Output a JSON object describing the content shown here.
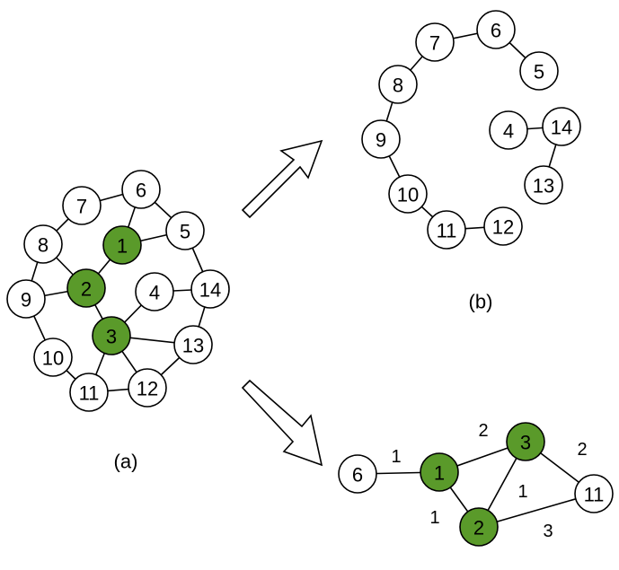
{
  "colors": {
    "highlight": "#5a9a2a",
    "plain": "#ffffff",
    "stroke": "#000000"
  },
  "panels": {
    "a": {
      "caption": "(a)",
      "nodes": [
        {
          "id": "1",
          "label": "1",
          "highlight": true
        },
        {
          "id": "2",
          "label": "2",
          "highlight": true
        },
        {
          "id": "3",
          "label": "3",
          "highlight": true
        },
        {
          "id": "4",
          "label": "4",
          "highlight": false
        },
        {
          "id": "5",
          "label": "5",
          "highlight": false
        },
        {
          "id": "6",
          "label": "6",
          "highlight": false
        },
        {
          "id": "7",
          "label": "7",
          "highlight": false
        },
        {
          "id": "8",
          "label": "8",
          "highlight": false
        },
        {
          "id": "9",
          "label": "9",
          "highlight": false
        },
        {
          "id": "10",
          "label": "10",
          "highlight": false
        },
        {
          "id": "11",
          "label": "11",
          "highlight": false
        },
        {
          "id": "12",
          "label": "12",
          "highlight": false
        },
        {
          "id": "13",
          "label": "13",
          "highlight": false
        },
        {
          "id": "14",
          "label": "14",
          "highlight": false
        }
      ],
      "edges": [
        [
          "7",
          "6"
        ],
        [
          "6",
          "5"
        ],
        [
          "5",
          "14"
        ],
        [
          "14",
          "13"
        ],
        [
          "13",
          "12"
        ],
        [
          "12",
          "11"
        ],
        [
          "11",
          "10"
        ],
        [
          "10",
          "9"
        ],
        [
          "9",
          "8"
        ],
        [
          "8",
          "7"
        ],
        [
          "1",
          "6"
        ],
        [
          "1",
          "5"
        ],
        [
          "1",
          "2"
        ],
        [
          "2",
          "8"
        ],
        [
          "2",
          "9"
        ],
        [
          "2",
          "3"
        ],
        [
          "3",
          "4"
        ],
        [
          "3",
          "13"
        ],
        [
          "3",
          "11"
        ],
        [
          "3",
          "12"
        ],
        [
          "4",
          "14"
        ]
      ]
    },
    "b": {
      "caption": "(b)",
      "nodes": [
        {
          "id": "6",
          "label": "6",
          "highlight": false
        },
        {
          "id": "7",
          "label": "7",
          "highlight": false
        },
        {
          "id": "5",
          "label": "5",
          "highlight": false
        },
        {
          "id": "8",
          "label": "8",
          "highlight": false
        },
        {
          "id": "4",
          "label": "4",
          "highlight": false
        },
        {
          "id": "14",
          "label": "14",
          "highlight": false
        },
        {
          "id": "9",
          "label": "9",
          "highlight": false
        },
        {
          "id": "13",
          "label": "13",
          "highlight": false
        },
        {
          "id": "10",
          "label": "10",
          "highlight": false
        },
        {
          "id": "12",
          "label": "12",
          "highlight": false
        },
        {
          "id": "11",
          "label": "11",
          "highlight": false
        }
      ],
      "edges": [
        [
          "7",
          "6"
        ],
        [
          "6",
          "5"
        ],
        [
          "8",
          "7"
        ],
        [
          "8",
          "9"
        ],
        [
          "9",
          "10"
        ],
        [
          "10",
          "11"
        ],
        [
          "11",
          "12"
        ],
        [
          "4",
          "14"
        ],
        [
          "14",
          "13"
        ]
      ]
    },
    "c": {
      "nodes": [
        {
          "id": "6",
          "label": "6",
          "highlight": false
        },
        {
          "id": "1",
          "label": "1",
          "highlight": true
        },
        {
          "id": "3",
          "label": "3",
          "highlight": true
        },
        {
          "id": "2",
          "label": "2",
          "highlight": true
        },
        {
          "id": "11",
          "label": "11",
          "highlight": false
        }
      ],
      "edges": [
        {
          "from": "6",
          "to": "1",
          "weight": "1"
        },
        {
          "from": "1",
          "to": "3",
          "weight": "2"
        },
        {
          "from": "1",
          "to": "2",
          "weight": "1"
        },
        {
          "from": "3",
          "to": "2",
          "weight": "1"
        },
        {
          "from": "3",
          "to": "11",
          "weight": "2"
        },
        {
          "from": "2",
          "to": "11",
          "weight": "3"
        }
      ]
    }
  }
}
